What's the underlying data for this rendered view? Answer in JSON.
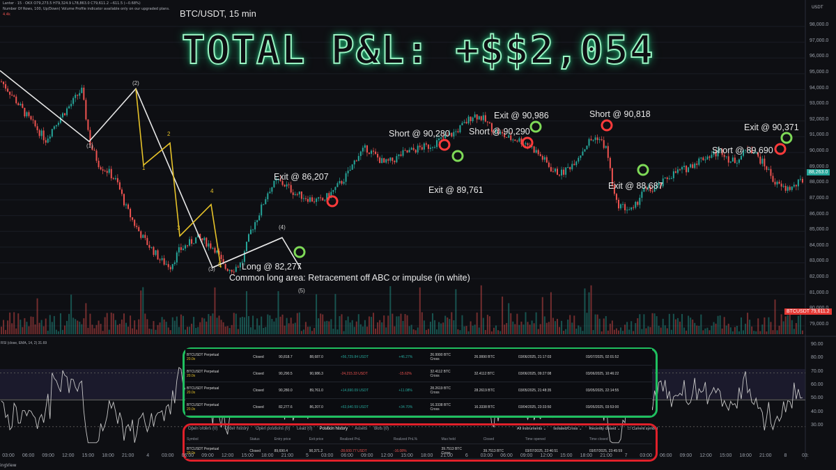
{
  "header": {
    "line1": "Lanter · 15 · OKX  O79,273.5  H79,324.9  L78,863.0  C79,611.2  −611.5 (−0.68%)",
    "line2": "Number Of Rows, 100, Up/Down)  Volume Profile indicator available only on our upgraded plans.",
    "line3": "4.4k",
    "currency": "USDT"
  },
  "chart_title": "BTC/USDT, 15 min",
  "banner": "TOTAL P&L: +$$2,054",
  "rsi_label": "RSI (close, EMA, 14, 2)  31.69",
  "current_price_tag": "BTCUSDT  79,611.2",
  "right_tag": "88,263.0",
  "footer_brand": "ingView",
  "colors": {
    "up": "#26a69a",
    "down": "#ef5350",
    "green_box": "#1fbf5f",
    "red_box": "#e0202a",
    "banner": "#9bf3c3",
    "rsi": "#c8c8c8"
  },
  "annotations": [
    {
      "text": "Short @ 90,280"
    },
    {
      "text": "Short @ 90,290"
    },
    {
      "text": "Exit @ 90,986"
    },
    {
      "text": "Short @ 90,818"
    },
    {
      "text": "Exit @ 90,371"
    },
    {
      "text": "Short @ 89,690"
    },
    {
      "text": "Exit @ 89,761"
    },
    {
      "text": "Exit @ 88,687"
    },
    {
      "text": "Exit @ 86,207"
    },
    {
      "text": "Long @ 82,277"
    },
    {
      "text": "Common long area: Retracement off ABC or impulse (in white)"
    }
  ],
  "wave_labels": [
    "(1)",
    "(2)",
    "(3)",
    "(4)",
    "(5)",
    "1",
    "2",
    "3",
    "4",
    "5"
  ],
  "chart_data": {
    "type": "line",
    "title": "BTC/USDT, 15 min",
    "y_ticks": [
      79000,
      80000,
      81000,
      82000,
      83000,
      84000,
      85000,
      86000,
      87000,
      88000,
      89000,
      90000,
      91000,
      92000,
      93000,
      94000,
      95000,
      96000,
      97000,
      98000
    ],
    "y_tick_labels": [
      "79,000.0",
      "80,000.0",
      "81,000.0",
      "82,000.0",
      "83,000.0",
      "84,000.0",
      "85,000.0",
      "86,000.0",
      "87,000.0",
      "88,000.0",
      "89,000.0",
      "90,000.0",
      "91,000.0",
      "92,000.0",
      "93,000.0",
      "94,000.0",
      "95,000.0",
      "96,000.0",
      "97,000.0",
      "98,000.0"
    ],
    "ylim": [
      78500,
      98700
    ],
    "rsi_ticks": [
      "90.00",
      "80.00",
      "70.00",
      "60.00",
      "50.00",
      "40.00",
      "30.00"
    ],
    "x_labels": [
      "03:00",
      "06:00",
      "09:00",
      "12:00",
      "15:00",
      "18:00",
      "21:00",
      "4",
      "03:00",
      "06:00",
      "09:00",
      "12:00",
      "15:00",
      "18:00",
      "21:00",
      "5",
      "03:00",
      "06:00",
      "09:00",
      "12:00",
      "15:00",
      "18:00",
      "21:00",
      "6",
      "03:00",
      "06:00",
      "09:00",
      "12:00",
      "15:00",
      "18:00",
      "21:00",
      "7",
      "03:00",
      "06:00",
      "09:00",
      "12:00",
      "15:00",
      "18:00",
      "21:00",
      "8",
      "03:"
    ],
    "price_path": [
      94500,
      93800,
      93000,
      92200,
      91500,
      90800,
      91800,
      92500,
      93200,
      94000,
      90500,
      89200,
      88800,
      88100,
      86500,
      85400,
      84500,
      83800,
      83100,
      82800,
      83800,
      84200,
      84600,
      84300,
      83900,
      82700,
      82600,
      83000,
      85000,
      86200,
      87600,
      88200,
      87900,
      87400,
      87200,
      87000,
      86900,
      87400,
      88000,
      88700,
      89800,
      90280,
      89800,
      89300,
      89500,
      89900,
      90100,
      90290,
      90400,
      90700,
      90986,
      91300,
      91800,
      92400,
      92200,
      91600,
      91200,
      90900,
      90818,
      90600,
      90100,
      89500,
      88800,
      88687,
      89200,
      89900,
      90700,
      91000,
      90200,
      86800,
      86500,
      86300,
      87600,
      87600,
      87900,
      88500,
      88800,
      89000,
      89400,
      89700,
      89900,
      90100,
      89400,
      89690,
      90371,
      89700,
      89000,
      88000,
      87700,
      87800,
      88263
    ],
    "trades": [
      {
        "side": "Short",
        "entry": 90280,
        "exit": 89761
      },
      {
        "side": "Short",
        "entry": 90290,
        "exit": 90986
      },
      {
        "side": "Short",
        "entry": 90818,
        "exit": 88687
      },
      {
        "side": "Short",
        "entry": 89690,
        "exit": 90371
      },
      {
        "side": "Long",
        "entry": 82277,
        "exit": 86207
      }
    ],
    "elliott_white": [
      {
        "label": "start",
        "price": 95200
      },
      {
        "label": "(1)",
        "price": 90700
      },
      {
        "label": "(2)",
        "price": 94050
      },
      {
        "label": "(3)",
        "price": 82700
      },
      {
        "label": "(4)",
        "price": 84600
      },
      {
        "label": "(5)",
        "price": 82600
      }
    ],
    "elliott_yellow": [
      {
        "label": "start",
        "price": 94050
      },
      {
        "label": "1",
        "price": 89200
      },
      {
        "label": "2",
        "price": 90600
      },
      {
        "label": "3",
        "price": 84700
      },
      {
        "label": "4",
        "price": 86700
      },
      {
        "label": "5",
        "price": 82700
      }
    ]
  },
  "closed_trades_table": [
    {
      "symbol": "BTCUSDT Perpetual",
      "lev": "20.0x",
      "status": "Closed",
      "entry": "90,818.7",
      "exit": "88,687.0",
      "pnl": "+56,729.84 USDT",
      "pnl_pct": "+46.27%",
      "max_held": "26.9990 BTC",
      "max_mode": "Cross",
      "closed": "26.9990 BTC",
      "opened": "03/06/2025, 21:17:03",
      "time_closed": "03/07/2025, 02:01:52",
      "pnl_sign": "pos"
    },
    {
      "symbol": "BTCUSDT Perpetual",
      "lev": "20.0x",
      "status": "Closed",
      "entry": "90,290.5",
      "exit": "90,986.3",
      "pnl": "-24,215.33 USDT",
      "pnl_pct": "-15.62%",
      "max_held": "32.4112 BTC",
      "max_mode": "Cross",
      "closed": "32.4112 BTC",
      "opened": "03/06/2025, 09:27:08",
      "time_closed": "03/06/2025, 10:46:22",
      "pnl_sign": "neg"
    },
    {
      "symbol": "BTCUSDT Perpetual",
      "lev": "20.0x",
      "status": "Closed",
      "entry": "90,280.0",
      "exit": "89,761.0",
      "pnl": "+14,690.09 USDT",
      "pnl_pct": "+11.08%",
      "max_held": "28.2619 BTC",
      "max_mode": "Cross",
      "closed": "28.2619 BTC",
      "opened": "03/05/2025, 21:48:35",
      "time_closed": "03/05/2025, 22:14:55",
      "pnl_sign": "pos"
    },
    {
      "symbol": "BTCUSDT Perpetual",
      "lev": "20.0x",
      "status": "Closed",
      "entry": "82,277.6",
      "exit": "86,207.0",
      "pnl": "+63,640.59 USDT",
      "pnl_pct": "+34.70%",
      "max_held": "16.3338 BTC",
      "max_mode": "Cross",
      "closed": "16.3338 BTC",
      "opened": "03/04/2025, 23:33:50",
      "time_closed": "03/05/2025, 03:53:00",
      "pnl_sign": "pos"
    }
  ],
  "tabs": [
    "Open orders (0)",
    "Order history",
    "Open positions (0)",
    "Lead (0)",
    "Position history",
    "Assets",
    "Bots (0)"
  ],
  "filters": [
    "All instruments ⌄",
    "Isolated/Cross ⌄",
    "Recently closed ⌄",
    "☐ Current symbol"
  ],
  "position_history_header": [
    "Symbol",
    "Status",
    "Entry price",
    "Exit price",
    "Realized PnL",
    "Realized PnL%",
    "Max held",
    "Closed",
    "Time opened",
    "Time closed"
  ],
  "position_history_row": {
    "symbol": "BTCUSDT Perpetual",
    "lev": "20.0x",
    "status": "Closed",
    "entry": "89,690.4",
    "exit": "90,371.2",
    "pnl": "-28,600.77 USDT",
    "pnl_pct": "-16.08%",
    "max_held": "39.7513 BTC",
    "max_mode": "Cross",
    "closed": "39.7513 BTC",
    "opened": "03/07/2025, 22:46:51",
    "time_closed": "03/07/2025, 23:45:59"
  }
}
